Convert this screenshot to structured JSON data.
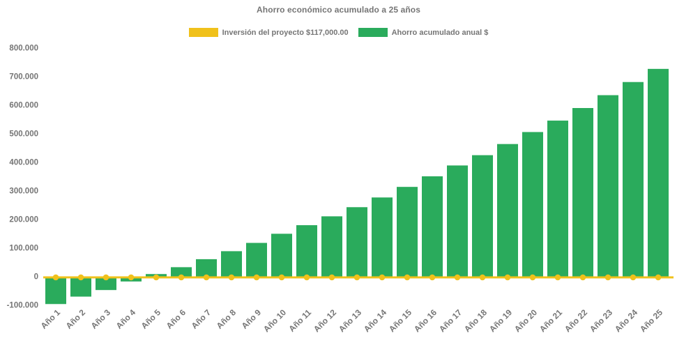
{
  "page": {
    "background_color": "#ffffff",
    "text_color": "#757575"
  },
  "chart_data": {
    "type": "bar",
    "title": "Ahorro económico acumulado a 25 años",
    "categories": [
      "Año 1",
      "Año 2",
      "Año 3",
      "Año 4",
      "Año 5",
      "Año 6",
      "Año 7",
      "Año 8",
      "Año 9",
      "Año 10",
      "Año 11",
      "Año 12",
      "Año 13",
      "Año 14",
      "Año 15",
      "Año 16",
      "Año 17",
      "Año 18",
      "Año 19",
      "Año 20",
      "Año 21",
      "Año 22",
      "Año 23",
      "Año 24",
      "Año 25"
    ],
    "series": [
      {
        "name": "Inversión del proyecto $117,000.00",
        "type": "line",
        "color": "#F0C11B",
        "marker": "circle",
        "values": [
          0,
          0,
          0,
          0,
          0,
          0,
          0,
          0,
          0,
          0,
          0,
          0,
          0,
          0,
          0,
          0,
          0,
          0,
          0,
          0,
          0,
          0,
          0,
          0,
          0
        ]
      },
      {
        "name": "Ahorro acumulado anual $",
        "type": "bar",
        "color": "#2AAB5C",
        "values": [
          -97000,
          -71000,
          -48000,
          -18000,
          8000,
          32000,
          60000,
          88000,
          117000,
          149000,
          179000,
          210000,
          242000,
          276000,
          313000,
          350000,
          388000,
          424000,
          463000,
          505000,
          545000,
          589000,
          634000,
          680000,
          726000
        ]
      }
    ],
    "y_axis": {
      "min": -100000,
      "max": 800000,
      "step": 100000,
      "tick_labels": [
        "800.000",
        "700.000",
        "600.000",
        "500.000",
        "400.000",
        "300.000",
        "200.000",
        "100.000",
        "0",
        "-100.000"
      ]
    },
    "x_axis": {
      "label_rotation_deg": -45
    },
    "legend_position": "top",
    "grid": false
  }
}
